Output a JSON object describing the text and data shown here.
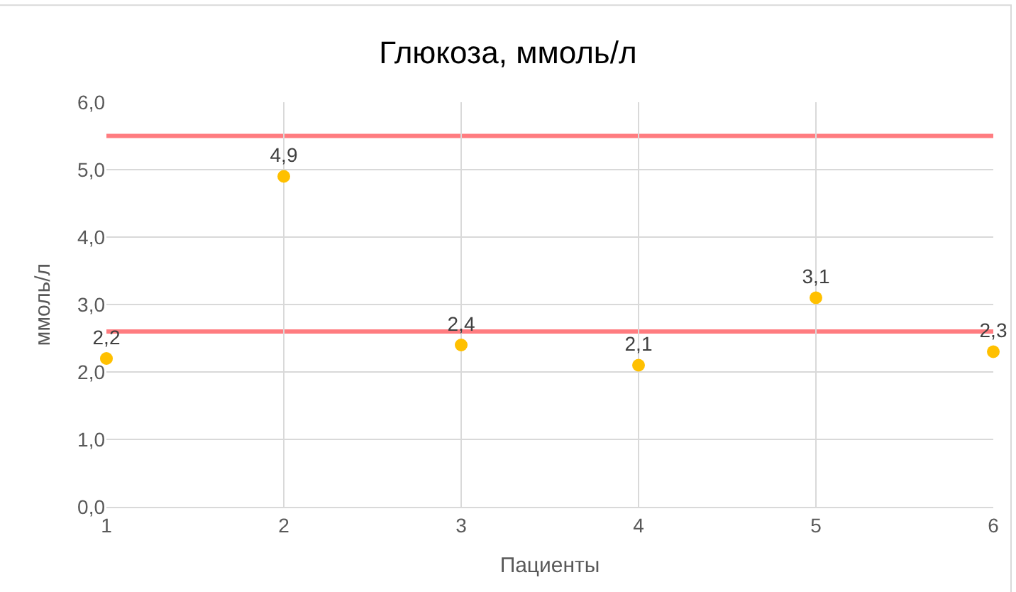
{
  "chart_data": {
    "type": "scatter",
    "title": "Глюкоза, ммоль/л",
    "xlabel": "Пациенты",
    "ylabel": "ммоль/л",
    "x": [
      1,
      2,
      3,
      4,
      5,
      6
    ],
    "series": [
      {
        "color": "#ffc000",
        "values": [
          2.2,
          4.9,
          2.4,
          2.1,
          3.1,
          2.3
        ],
        "value_labels": [
          "2,2",
          "4,9",
          "2,4",
          "2,1",
          "3,1",
          "2,3"
        ]
      }
    ],
    "xlim": [
      1,
      6
    ],
    "xticks": [
      1,
      2,
      3,
      4,
      5,
      6
    ],
    "ylim": [
      0,
      6
    ],
    "yticks": [
      {
        "value": 0,
        "label": "0,0"
      },
      {
        "value": 1,
        "label": "1,0"
      },
      {
        "value": 2,
        "label": "2,0"
      },
      {
        "value": 3,
        "label": "3,0"
      },
      {
        "value": 4,
        "label": "4,0"
      },
      {
        "value": 5,
        "label": "5,0"
      },
      {
        "value": 6,
        "label": "6,0"
      }
    ],
    "ref_lines": [
      {
        "axis": "y",
        "value": 5.5,
        "color": "#ff7c80"
      },
      {
        "axis": "y",
        "value": 2.6,
        "color": "#ff7c80"
      }
    ],
    "grid": true,
    "marker": "circle"
  }
}
